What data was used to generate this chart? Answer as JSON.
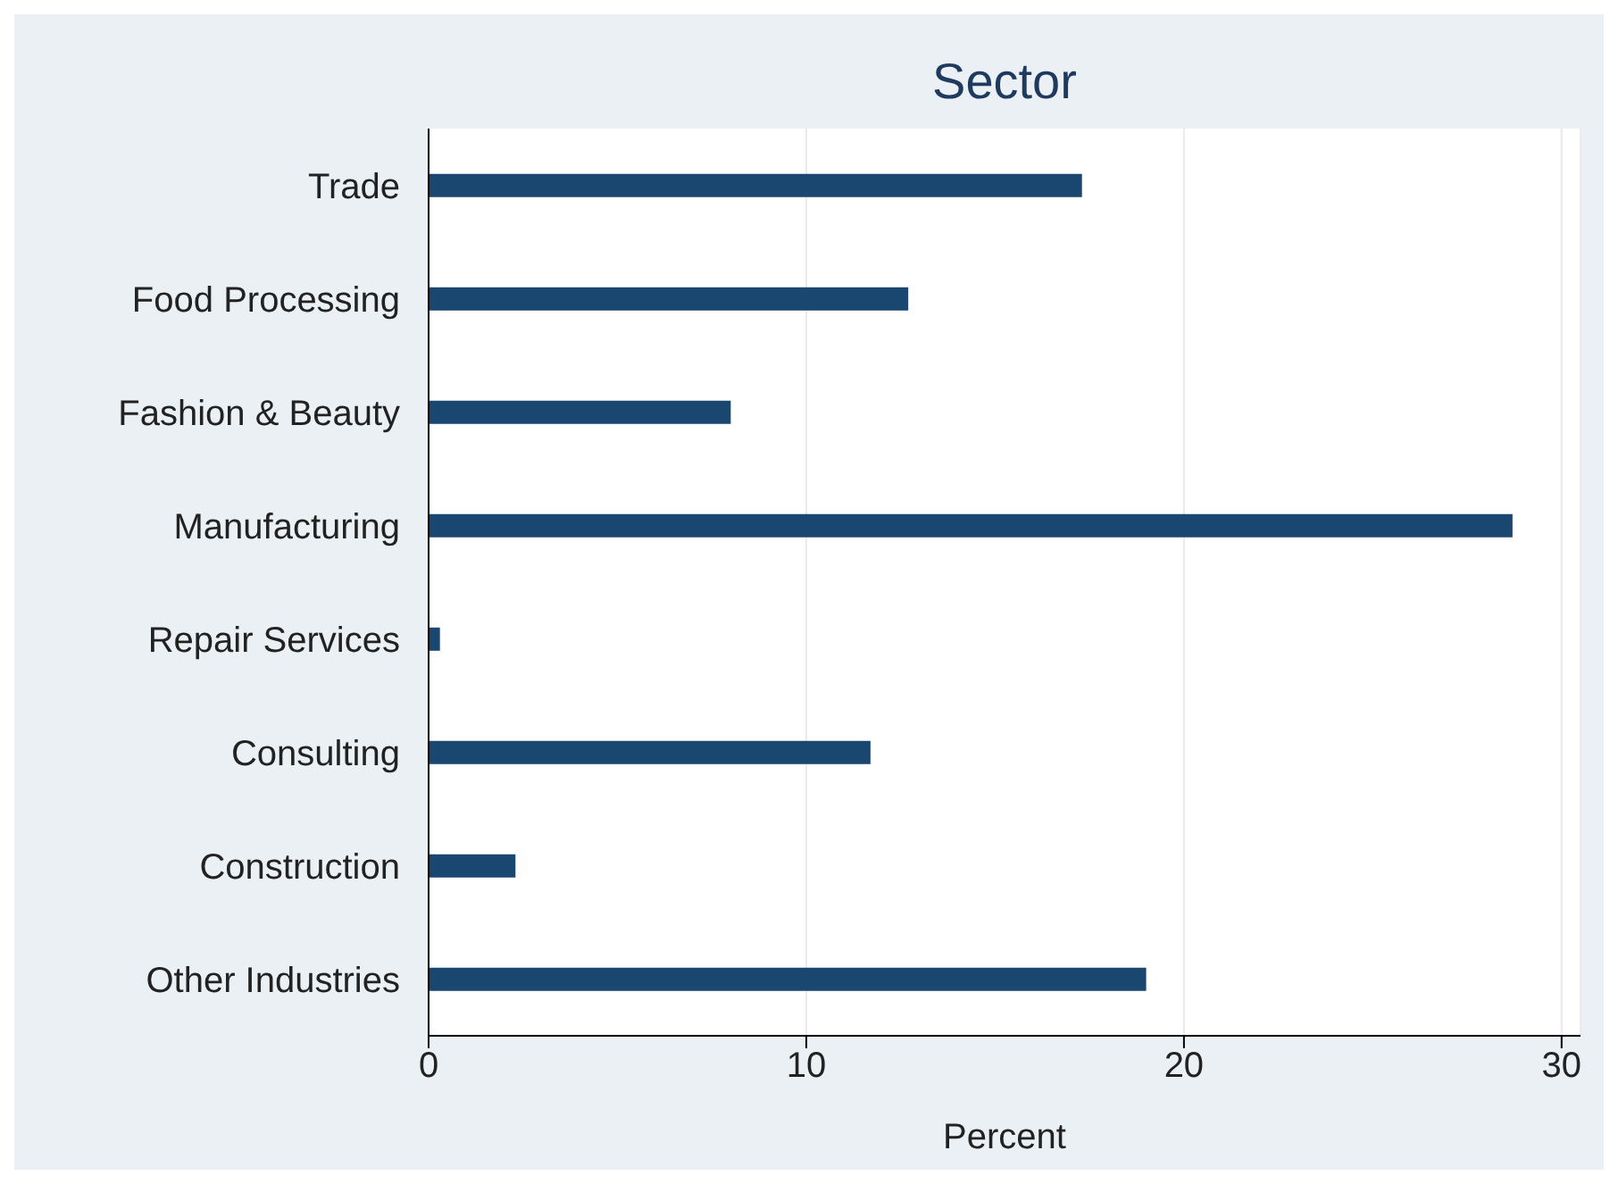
{
  "chart_data": {
    "type": "bar",
    "orientation": "horizontal",
    "title": "Sector",
    "xlabel": "Percent",
    "categories": [
      "Trade",
      "Food Processing",
      "Fashion & Beauty",
      "Manufacturing",
      "Repair Services",
      "Consulting",
      "Construction",
      "Other Industries"
    ],
    "values": [
      17.3,
      12.7,
      8.0,
      28.7,
      0.3,
      11.7,
      2.3,
      19.0
    ],
    "color": "#1a476f",
    "xlim": [
      0,
      30.5
    ],
    "xticks": [
      0,
      10,
      20,
      30
    ],
    "grid": "x"
  }
}
